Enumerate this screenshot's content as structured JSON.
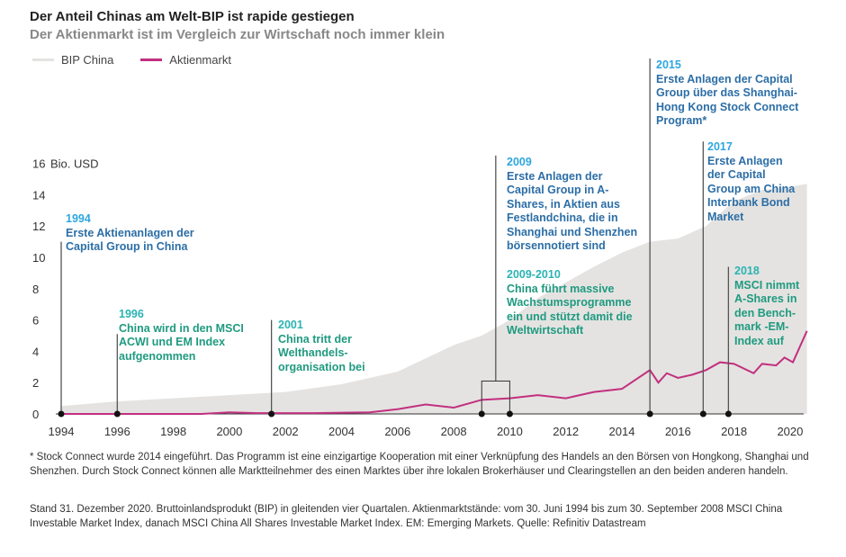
{
  "chart_data": {
    "type": "area",
    "title": "Der Anteil Chinas am Welt-BIP ist rapide gestiegen",
    "subtitle": "Der Aktienmarkt ist im Vergleich zur Wirtschaft noch immer klein",
    "ylabel": "Bio. USD",
    "ylim": [
      0,
      16
    ],
    "xlim": [
      1994,
      2020.6
    ],
    "yticks": [
      0,
      2,
      4,
      6,
      8,
      10,
      12,
      14,
      16
    ],
    "xticks": [
      1994,
      1996,
      1998,
      2000,
      2002,
      2004,
      2006,
      2008,
      2010,
      2012,
      2014,
      2016,
      2018,
      2020
    ],
    "legend": [
      "BIP China",
      "Aktienmarkt"
    ],
    "series": [
      {
        "name": "BIP China",
        "color": "#e4e3e1",
        "type": "area",
        "x": [
          1994,
          1996,
          1998,
          2000,
          2002,
          2004,
          2006,
          2008,
          2009,
          2010,
          2011,
          2012,
          2013,
          2014,
          2015,
          2016,
          2017,
          2018,
          2019,
          2020,
          2020.6
        ],
        "y": [
          0.5,
          0.8,
          1.0,
          1.2,
          1.4,
          1.9,
          2.7,
          4.4,
          5.0,
          6.0,
          7.4,
          8.4,
          9.4,
          10.3,
          11.0,
          11.2,
          12.0,
          13.6,
          14.3,
          14.5,
          14.7
        ]
      },
      {
        "name": "Aktienmarkt",
        "color": "#c2307f",
        "type": "line",
        "x": [
          1994,
          1999,
          2000,
          2001,
          2003,
          2005,
          2006,
          2007,
          2008,
          2009,
          2010,
          2011,
          2012,
          2013,
          2014,
          2015,
          2015.3,
          2015.6,
          2016,
          2016.5,
          2017,
          2017.5,
          2018,
          2018.7,
          2019,
          2019.5,
          2019.8,
          2020.1,
          2020.6
        ],
        "y": [
          0,
          0,
          0.1,
          0.05,
          0.05,
          0.1,
          0.3,
          0.6,
          0.4,
          0.9,
          1.0,
          1.2,
          1.0,
          1.4,
          1.6,
          2.8,
          2.0,
          2.6,
          2.3,
          2.5,
          2.8,
          3.3,
          3.2,
          2.6,
          3.2,
          3.1,
          3.6,
          3.3,
          5.3
        ]
      }
    ],
    "events": [
      {
        "year": "1994",
        "text": "Erste Aktienanlagen der Capital Group in China",
        "style": "blue",
        "x": 1994,
        "top": 11
      },
      {
        "year": "1996",
        "text": "China wird in den MSCI ACWI und EM Index aufgenommen",
        "style": "teal",
        "x": 1996,
        "top": 5.1
      },
      {
        "year": "2001",
        "text": "China tritt der Welthandels-organisation bei",
        "style": "teal",
        "x": 2001.5,
        "top": 6
      },
      {
        "year": "2009",
        "text": "Erste Anlagen der Capital Group in A-Shares, in Aktien aus Festlandchina, die in Shanghai und Shenzhen börsennotiert sind",
        "style": "blue",
        "x": 2009.5,
        "top": 16.5
      },
      {
        "year": "2009-2010",
        "text": "China führt massive Wachstumsprogramme ein und stützt damit die Weltwirtschaft",
        "style": "teal",
        "x": 2009.0,
        "x2": 2010.0,
        "box": 2.1
      },
      {
        "year": "2015",
        "text": "Erste Anlagen der Capital Group über das Shanghai-Hong Kong Stock Connect Program*",
        "style": "blue",
        "x": 2015,
        "top": 22.7
      },
      {
        "year": "2017",
        "text": "Erste Anlagen der Capital Group am China Interbank Bond Market",
        "style": "blue",
        "x": 2016.9,
        "top": 17.4
      },
      {
        "year": "2018",
        "text": "MSCI nimmt A-Shares in den Bench-mark -EM-Index auf",
        "style": "teal",
        "x": 2017.8,
        "top": 9.4
      }
    ]
  },
  "footnotes": [
    "* Stock Connect wurde 2014 eingeführt. Das Programm ist eine einzigartige Kooperation mit einer Verknüpfung des Handels an den Börsen von Hongkong, Shanghai und Shenzhen. Durch Stock Connect können alle Marktteilnehmer des einen Marktes über ihre lokalen Brokerhäuser und Clearingstellen an den beiden anderen handeln.",
    "Stand 31. Dezember 2020. Bruttoinlandsprodukt (BIP) in gleitenden vier Quartalen. Aktienmarktstände: vom 30. Juni 1994 bis zum 30. September 2008 MSCI China Investable Market Index, danach MSCI China All Shares Investable Market Index. EM: Emerging Markets. Quelle: Refinitiv Datastream"
  ]
}
